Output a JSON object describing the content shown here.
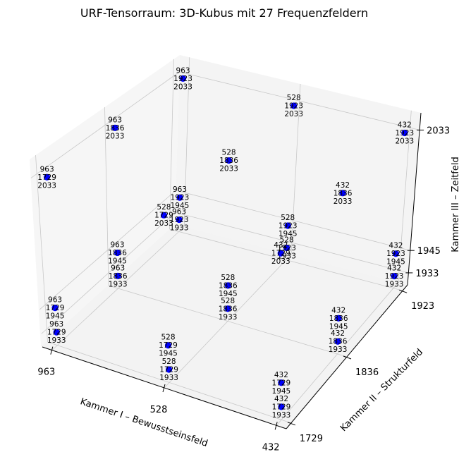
{
  "chart_data": {
    "type": "scatter",
    "title": "URF-Tensorraum: 3D-Kubus mit 27 Frequenzfeldern",
    "xlabel": "Kammer I – Bewusstseinsfeld",
    "ylabel": "Kammer II – Strukturfeld",
    "zlabel": "Kammer III – Zeitfeld",
    "x_ticks": [
      "963",
      "528",
      "432"
    ],
    "y_ticks": [
      "1729",
      "1836",
      "1923"
    ],
    "z_ticks": [
      "1933",
      "1945",
      "2033"
    ],
    "x_values": [
      963,
      528,
      432
    ],
    "y_values": [
      1729,
      1836,
      1923
    ],
    "z_values": [
      1933,
      1945,
      2033
    ],
    "marker_color": "#0000ff",
    "grid": true,
    "points": [
      {
        "x": 963,
        "y": 1729,
        "z": 1933,
        "label": "963\n1729\n1933"
      },
      {
        "x": 963,
        "y": 1729,
        "z": 1945,
        "label": "963\n1729\n1945"
      },
      {
        "x": 963,
        "y": 1729,
        "z": 2033,
        "label": "963\n1729\n2033"
      },
      {
        "x": 963,
        "y": 1836,
        "z": 1933,
        "label": "963\n1836\n1933"
      },
      {
        "x": 963,
        "y": 1836,
        "z": 1945,
        "label": "963\n1836\n1945"
      },
      {
        "x": 963,
        "y": 1836,
        "z": 2033,
        "label": "963\n1836\n2033"
      },
      {
        "x": 963,
        "y": 1923,
        "z": 1933,
        "label": "963\n1923\n1933"
      },
      {
        "x": 963,
        "y": 1923,
        "z": 1945,
        "label": "963\n1923\n1945"
      },
      {
        "x": 963,
        "y": 1923,
        "z": 2033,
        "label": "963\n1923\n2033"
      },
      {
        "x": 528,
        "y": 1729,
        "z": 1933,
        "label": "528\n1729\n1933"
      },
      {
        "x": 528,
        "y": 1729,
        "z": 1945,
        "label": "528\n1729\n1945"
      },
      {
        "x": 528,
        "y": 1729,
        "z": 2033,
        "label": "528\n1729\n2033"
      },
      {
        "x": 528,
        "y": 1836,
        "z": 1933,
        "label": "528\n1836\n1933"
      },
      {
        "x": 528,
        "y": 1836,
        "z": 1945,
        "label": "528\n1836\n1945"
      },
      {
        "x": 528,
        "y": 1836,
        "z": 2033,
        "label": "528\n1836\n2033"
      },
      {
        "x": 528,
        "y": 1923,
        "z": 1933,
        "label": "528\n1923\n1933"
      },
      {
        "x": 528,
        "y": 1923,
        "z": 1945,
        "label": "528\n1923\n1945"
      },
      {
        "x": 528,
        "y": 1923,
        "z": 2033,
        "label": "528\n1923\n2033"
      },
      {
        "x": 432,
        "y": 1729,
        "z": 1933,
        "label": "432\n1729\n1933"
      },
      {
        "x": 432,
        "y": 1729,
        "z": 1945,
        "label": "432\n1729\n1945"
      },
      {
        "x": 432,
        "y": 1729,
        "z": 2033,
        "label": "432\n1729\n2033"
      },
      {
        "x": 432,
        "y": 1836,
        "z": 1933,
        "label": "432\n1836\n1933"
      },
      {
        "x": 432,
        "y": 1836,
        "z": 1945,
        "label": "432\n1836\n1945"
      },
      {
        "x": 432,
        "y": 1836,
        "z": 2033,
        "label": "432\n1836\n2033"
      },
      {
        "x": 432,
        "y": 1923,
        "z": 1933,
        "label": "432\n1923\n1933"
      },
      {
        "x": 432,
        "y": 1923,
        "z": 1945,
        "label": "432\n1923\n1945"
      },
      {
        "x": 432,
        "y": 1923,
        "z": 2033,
        "label": "432\n1923\n2033"
      }
    ]
  }
}
